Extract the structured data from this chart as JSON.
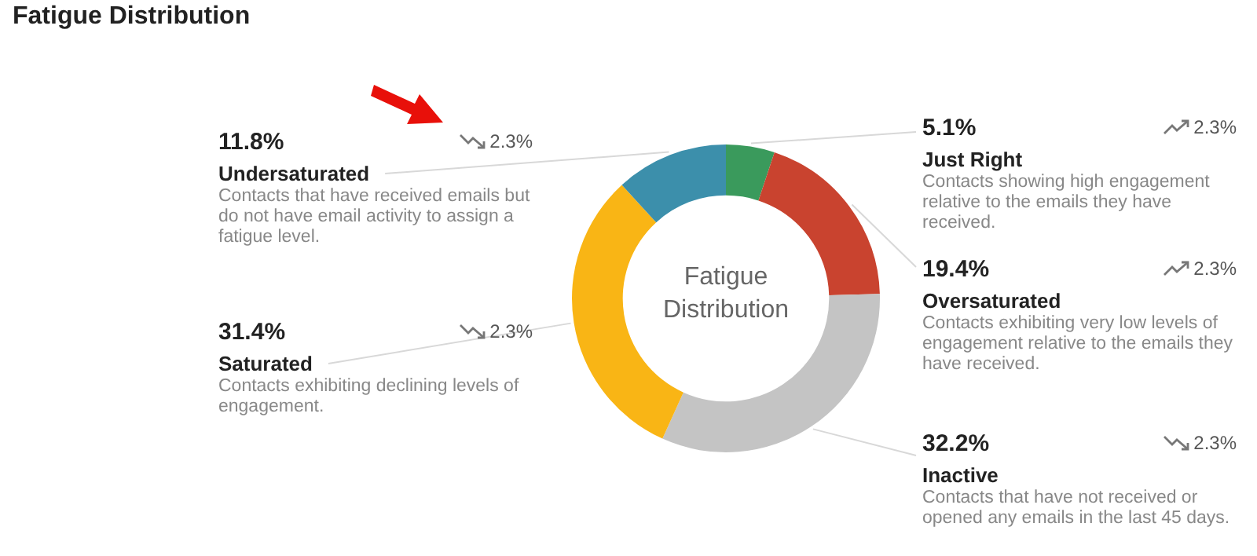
{
  "chart_data": {
    "type": "donut",
    "title": "Fatigue Distribution",
    "categories": [
      "Just Right",
      "Oversaturated",
      "Inactive",
      "Saturated",
      "Undersaturated"
    ],
    "values": [
      5.1,
      19.4,
      32.2,
      31.4,
      11.8
    ],
    "colors": [
      "#3a9a5c",
      "#c9432f",
      "#c4c4c4",
      "#f9b515",
      "#3c8fab"
    ],
    "value_labels": [
      "5.1%",
      "19.4%",
      "32.2%",
      "31.4%",
      "11.8%"
    ],
    "legend": false,
    "annotations": [
      "Fatigue Distribution",
      "2.3%",
      "Contacts showing high engagement relative to the emails they have received.",
      "2.3%",
      "Contacts exhibiting very low levels of engagement relative to the emails they have received.",
      "2.3%",
      "Contacts that have not received or opened any emails in the last 45 days.",
      "2.3%",
      "Contacts exhibiting declining levels of engagement.",
      "2.3%",
      "Contacts that have received emails but do not have email activity to assign a fatigue level."
    ]
  }
}
